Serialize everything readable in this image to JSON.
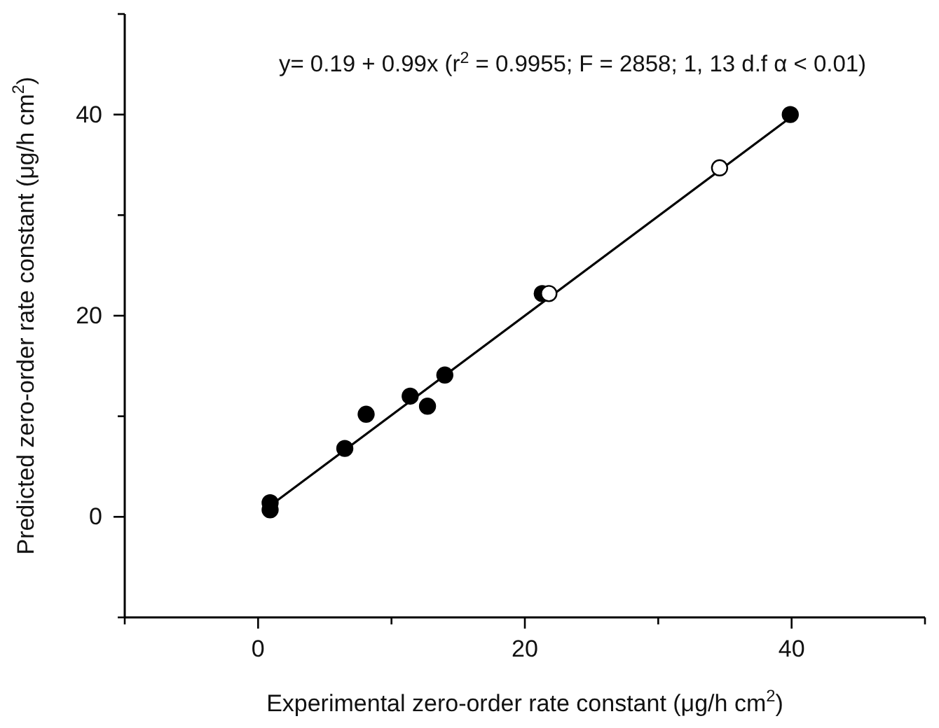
{
  "chart_data": {
    "type": "scatter",
    "xlabel": "Experimental zero-order rate constant (μg/h cm$^{2}$)",
    "ylabel": "Predicted zero-order rate constant (μg/h cm$^{2}$)",
    "annotations": [
      "y= 0.19 + 0.99x (r$^{2}$ = 0.9955; F = 2858; 1, 13 d.f α < 0.01)"
    ],
    "xlim": [
      -10,
      50
    ],
    "ylim": [
      -10,
      50
    ],
    "xticks": [
      {
        "value": -10,
        "label": null
      },
      0,
      {
        "value": 10,
        "label": null
      },
      20,
      {
        "value": 30,
        "label": null
      },
      40,
      {
        "value": 50,
        "label": null
      }
    ],
    "yticks": [
      {
        "value": -10,
        "label": null
      },
      0,
      {
        "value": 10,
        "label": null
      },
      20,
      {
        "value": 30,
        "label": null
      },
      40,
      {
        "value": 50,
        "label": null
      }
    ],
    "grid": false,
    "marker": "circle",
    "series": [
      {
        "type": "line",
        "color": "#000000",
        "x": [
          0.9,
          39.9
        ],
        "values": [
          1.1,
          39.7
        ],
        "marker": "none",
        "line_style": "solid"
      },
      {
        "color": "#000000",
        "x": [
          0.9,
          0.9,
          6.5,
          8.1,
          11.4,
          12.7,
          14.0,
          21.3,
          39.9
        ],
        "values": [
          1.4,
          0.7,
          6.8,
          10.2,
          12.0,
          11.0,
          14.1,
          22.2,
          40.0
        ]
      },
      {
        "color": "#ffffff",
        "x": [
          21.8,
          34.6
        ],
        "values": [
          22.2,
          34.7
        ]
      }
    ]
  }
}
